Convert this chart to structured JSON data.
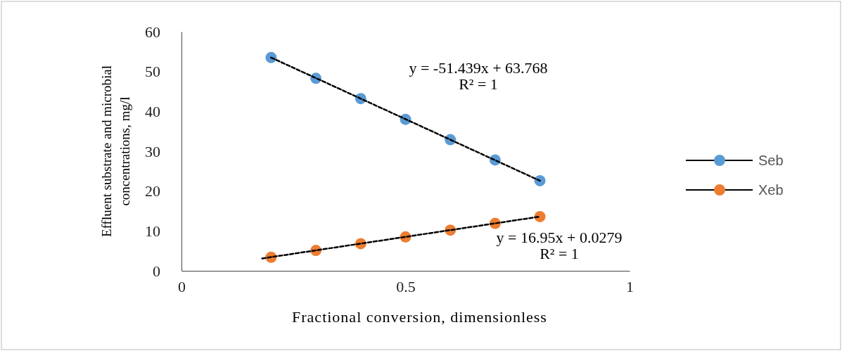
{
  "chart_data": {
    "type": "scatter",
    "xlabel": "Fractional conversion,  dimensionless",
    "ylabel": "Effluent  substrate and microbial concentrations, mg/l",
    "x": [
      0.2,
      0.3,
      0.4,
      0.5,
      0.6,
      0.7,
      0.8
    ],
    "series": [
      {
        "name": "Seb",
        "color": "#5b9bd5",
        "values": [
          53.5,
          48.3,
          43.2,
          38.0,
          32.9,
          27.8,
          22.6
        ]
      },
      {
        "name": "Xeb",
        "color": "#ed7d31",
        "values": [
          3.4,
          5.1,
          6.8,
          8.5,
          10.2,
          11.9,
          13.6
        ]
      },
      {
        "type": "line",
        "color": "#000000",
        "line_style": "dashed",
        "marker": "none",
        "x": [
          0.2,
          0.8
        ],
        "values": [
          53.5,
          22.6
        ]
      },
      {
        "type": "line",
        "color": "#000000",
        "line_style": "dashed",
        "marker": "none",
        "x": [
          0.18,
          0.8
        ],
        "values": [
          3.1,
          13.6
        ]
      }
    ],
    "xlim": [
      0,
      1
    ],
    "xticks": [
      0,
      0.5,
      1
    ],
    "ylim": [
      0,
      60
    ],
    "yticks": [
      0,
      10,
      20,
      30,
      40,
      50,
      60
    ],
    "marker": "circle",
    "grid": false,
    "legend": "right",
    "annotations": [
      "y = -51.439x + 63.768",
      "R² = 1",
      "y = 16.95x + 0.0279",
      "R² = 1"
    ]
  }
}
